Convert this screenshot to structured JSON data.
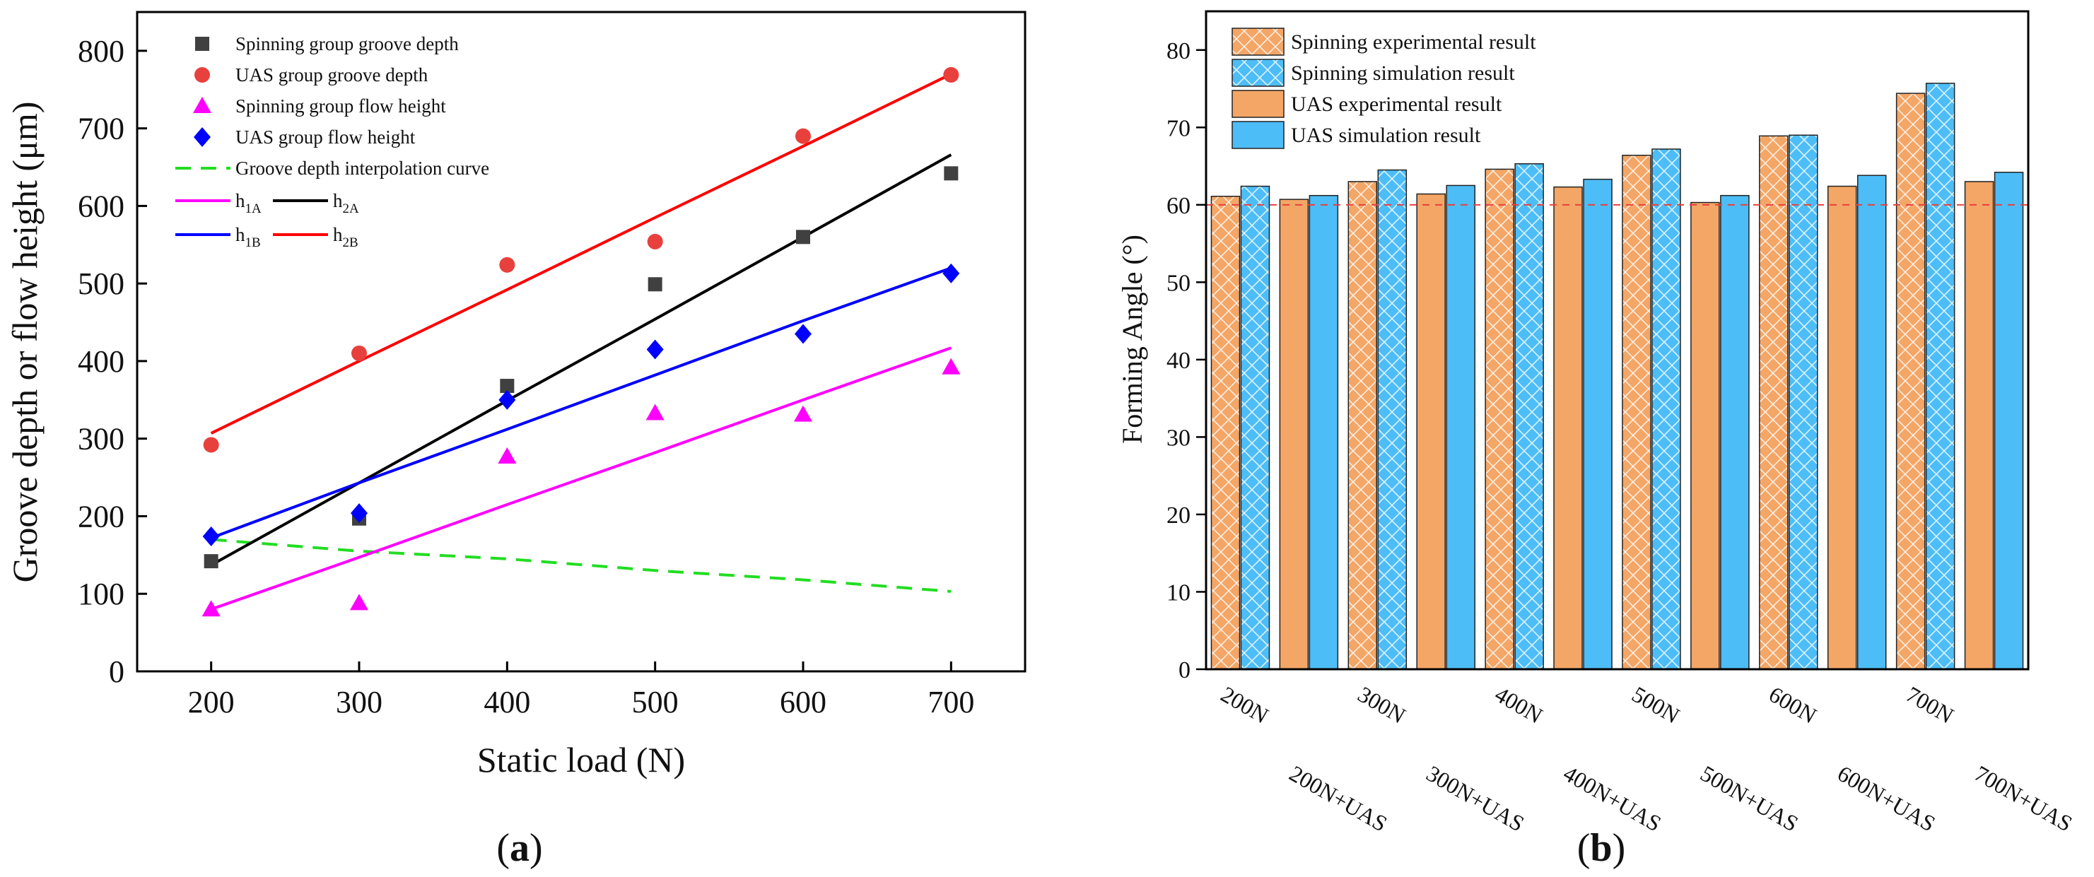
{
  "chart_data": [
    {
      "type": "scatter",
      "panel_label": "a",
      "xlabel": "Static load (N)",
      "ylabel": "Groove depth or flow height (μm)",
      "xlim": [
        150,
        750
      ],
      "ylim": [
        0,
        850
      ],
      "xticks": [
        200,
        300,
        400,
        500,
        600,
        700
      ],
      "yticks": [
        0,
        100,
        200,
        300,
        400,
        500,
        600,
        700,
        800
      ],
      "legend_position": "top-left",
      "x": [
        200,
        300,
        400,
        500,
        600,
        700
      ],
      "series": [
        {
          "name": "Spinning group groove depth",
          "kind": "marker",
          "marker": "square",
          "color": "#404040",
          "values": [
            142,
            197,
            368,
            499,
            560,
            642
          ]
        },
        {
          "name": "UAS group groove depth",
          "kind": "marker",
          "marker": "circle",
          "color": "#E8403C",
          "values": [
            292,
            410,
            524,
            554,
            690,
            769
          ]
        },
        {
          "name": "Spinning group flow height",
          "kind": "marker",
          "marker": "triangle",
          "color": "#FF00FF",
          "values": [
            80,
            88,
            277,
            333,
            331,
            392
          ]
        },
        {
          "name": "UAS group flow height",
          "kind": "marker",
          "marker": "diamond",
          "color": "#0000FF",
          "values": [
            174,
            204,
            350,
            415,
            435,
            513
          ]
        },
        {
          "name": "Groove depth interpolation curve",
          "kind": "dashed",
          "color": "#22DD22",
          "values": [
            170,
            155,
            145,
            130,
            118,
            103
          ]
        },
        {
          "name": "h",
          "sub": "1A",
          "kind": "line",
          "color": "#FF00FF",
          "values": [
            80,
            147,
            215,
            282,
            350,
            417
          ]
        },
        {
          "name": "h",
          "sub": "2A",
          "kind": "line",
          "color": "#000000",
          "values": [
            137,
            243,
            349,
            454,
            560,
            666
          ]
        },
        {
          "name": "h",
          "sub": "1B",
          "kind": "line",
          "color": "#0000FF",
          "values": [
            172,
            243,
            312,
            382,
            452,
            520
          ]
        },
        {
          "name": "h",
          "sub": "2B",
          "kind": "line",
          "color": "#FF0000",
          "values": [
            307,
            400,
            492,
            585,
            677,
            770
          ]
        }
      ]
    },
    {
      "type": "bar",
      "panel_label": "b",
      "xlabel": "",
      "ylabel": "Forming Angle (°)",
      "ylim": [
        0,
        85
      ],
      "yticks": [
        0,
        10,
        20,
        30,
        40,
        50,
        60,
        70,
        80
      ],
      "reference_line": 60,
      "legend_position": "top-left",
      "categories": [
        "200N",
        "200N+UAS",
        "300N",
        "300N+UAS",
        "400N",
        "400N+UAS",
        "500N",
        "500N+UAS",
        "600N",
        "600N+UAS",
        "700N",
        "700N+UAS"
      ],
      "series": [
        {
          "name": "Experimental result",
          "color": "#F4A666",
          "values": [
            61.1,
            60.7,
            63.0,
            61.4,
            64.6,
            62.3,
            66.4,
            60.3,
            68.9,
            62.4,
            74.4,
            63.0
          ]
        },
        {
          "name": "Simulation result",
          "color": "#4DBDF7",
          "values": [
            62.4,
            61.2,
            64.5,
            62.5,
            65.3,
            63.3,
            67.2,
            61.2,
            69.0,
            63.8,
            75.7,
            64.2
          ]
        }
      ],
      "legend": [
        {
          "name": "Spinning experimental result",
          "color": "#F4A666",
          "hatched": true
        },
        {
          "name": "Spinning simulation result",
          "color": "#4DBDF7",
          "hatched": true
        },
        {
          "name": "UAS experimental result",
          "color": "#F4A666",
          "hatched": false
        },
        {
          "name": "UAS simulation result",
          "color": "#4DBDF7",
          "hatched": false
        }
      ]
    }
  ]
}
